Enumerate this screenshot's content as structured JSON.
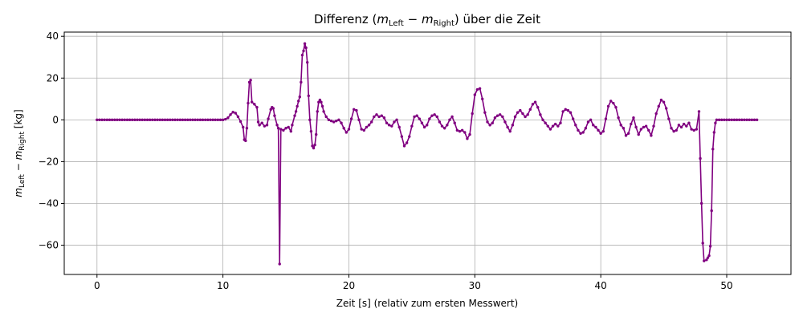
{
  "chart_data": {
    "type": "line",
    "title_parts": [
      "Differenz (",
      "m",
      "Left",
      " − ",
      "m",
      "Right",
      ") über die Zeit"
    ],
    "xlabel": "Zeit [s] (relativ zum ersten Messwert)",
    "ylabel_parts": [
      "m",
      "Left",
      " − ",
      "m",
      "Right",
      " [kg]"
    ],
    "xlim": [
      -2.6,
      55.1
    ],
    "ylim": [
      -74,
      42
    ],
    "x_ticks": [
      0,
      10,
      20,
      30,
      40,
      50
    ],
    "y_ticks": [
      -60,
      -40,
      -20,
      0,
      20,
      40
    ],
    "x_tick_labels": [
      "0",
      "10",
      "20",
      "30",
      "40",
      "50"
    ],
    "y_tick_labels": [
      "−60",
      "−40",
      "−20",
      "0",
      "20",
      "40"
    ],
    "grid": true,
    "series": [
      {
        "color": "#800080",
        "marker": "circle",
        "points": [
          [
            10.2,
            0.3
          ],
          [
            10.4,
            1.0
          ],
          [
            10.6,
            2.5
          ],
          [
            10.8,
            3.7
          ],
          [
            11.0,
            3.2
          ],
          [
            11.2,
            1.5
          ],
          [
            11.4,
            -0.8
          ],
          [
            11.6,
            -3.5
          ],
          [
            11.7,
            -9.5
          ],
          [
            11.8,
            -10.0
          ],
          [
            11.9,
            -4.0
          ],
          [
            12.0,
            8.0
          ],
          [
            12.1,
            18.0
          ],
          [
            12.2,
            19.0
          ],
          [
            12.3,
            8.5
          ],
          [
            12.5,
            7.5
          ],
          [
            12.7,
            6.0
          ],
          [
            12.8,
            -1.0
          ],
          [
            12.9,
            -2.5
          ],
          [
            13.1,
            -1.5
          ],
          [
            13.3,
            -3.0
          ],
          [
            13.5,
            -2.5
          ],
          [
            13.6,
            0.5
          ],
          [
            13.8,
            5.0
          ],
          [
            13.9,
            6.0
          ],
          [
            14.0,
            5.5
          ],
          [
            14.1,
            2.0
          ],
          [
            14.3,
            -2.5
          ],
          [
            14.4,
            -4.0
          ],
          [
            14.5,
            -69.0
          ],
          [
            14.6,
            -4.5
          ],
          [
            14.8,
            -5.0
          ],
          [
            15.0,
            -4.0
          ],
          [
            15.2,
            -3.5
          ],
          [
            15.4,
            -5.5
          ],
          [
            15.5,
            -2.5
          ],
          [
            15.7,
            2.0
          ],
          [
            15.8,
            4.0
          ],
          [
            15.9,
            6.5
          ],
          [
            16.0,
            9.0
          ],
          [
            16.1,
            11.0
          ],
          [
            16.2,
            18.0
          ],
          [
            16.3,
            31.0
          ],
          [
            16.4,
            33.0
          ],
          [
            16.5,
            36.5
          ],
          [
            16.6,
            34.5
          ],
          [
            16.7,
            27.5
          ],
          [
            16.8,
            11.5
          ],
          [
            16.9,
            0.0
          ],
          [
            17.0,
            -5.5
          ],
          [
            17.1,
            -12.5
          ],
          [
            17.2,
            -13.5
          ],
          [
            17.3,
            -12.0
          ],
          [
            17.4,
            -7.0
          ],
          [
            17.5,
            4.0
          ],
          [
            17.6,
            8.5
          ],
          [
            17.7,
            9.5
          ],
          [
            17.8,
            8.5
          ],
          [
            17.9,
            6.5
          ],
          [
            18.0,
            4.0
          ],
          [
            18.2,
            1.5
          ],
          [
            18.4,
            0.0
          ],
          [
            18.6,
            -0.5
          ],
          [
            18.8,
            -1.0
          ],
          [
            19.0,
            -0.5
          ],
          [
            19.2,
            0.0
          ],
          [
            19.4,
            -1.5
          ],
          [
            19.6,
            -4.0
          ],
          [
            19.8,
            -6.0
          ],
          [
            20.0,
            -4.5
          ],
          [
            20.2,
            0.5
          ],
          [
            20.4,
            5.0
          ],
          [
            20.6,
            4.5
          ],
          [
            20.8,
            0.0
          ],
          [
            21.0,
            -4.5
          ],
          [
            21.2,
            -5.0
          ],
          [
            21.4,
            -3.5
          ],
          [
            21.6,
            -2.5
          ],
          [
            21.8,
            -1.0
          ],
          [
            22.0,
            1.5
          ],
          [
            22.2,
            2.5
          ],
          [
            22.4,
            1.5
          ],
          [
            22.6,
            2.0
          ],
          [
            22.8,
            1.0
          ],
          [
            23.0,
            -1.5
          ],
          [
            23.2,
            -2.5
          ],
          [
            23.4,
            -3.0
          ],
          [
            23.6,
            -1.0
          ],
          [
            23.8,
            0.0
          ],
          [
            24.0,
            -3.5
          ],
          [
            24.2,
            -8.0
          ],
          [
            24.4,
            -12.5
          ],
          [
            24.6,
            -11.0
          ],
          [
            24.8,
            -8.0
          ],
          [
            25.0,
            -3.0
          ],
          [
            25.2,
            1.5
          ],
          [
            25.4,
            2.0
          ],
          [
            25.6,
            0.5
          ],
          [
            25.8,
            -1.5
          ],
          [
            26.0,
            -3.5
          ],
          [
            26.2,
            -2.5
          ],
          [
            26.4,
            0.5
          ],
          [
            26.6,
            2.0
          ],
          [
            26.8,
            2.5
          ],
          [
            27.0,
            1.5
          ],
          [
            27.2,
            -1.0
          ],
          [
            27.4,
            -3.0
          ],
          [
            27.6,
            -4.0
          ],
          [
            27.8,
            -2.5
          ],
          [
            28.0,
            0.0
          ],
          [
            28.2,
            1.5
          ],
          [
            28.4,
            -1.5
          ],
          [
            28.6,
            -5.0
          ],
          [
            28.8,
            -5.5
          ],
          [
            29.0,
            -5.0
          ],
          [
            29.2,
            -6.0
          ],
          [
            29.4,
            -9.0
          ],
          [
            29.6,
            -7.0
          ],
          [
            29.8,
            3.0
          ],
          [
            30.0,
            12.0
          ],
          [
            30.2,
            14.5
          ],
          [
            30.4,
            15.0
          ],
          [
            30.6,
            10.0
          ],
          [
            30.8,
            3.5
          ],
          [
            31.0,
            -1.0
          ],
          [
            31.2,
            -2.5
          ],
          [
            31.4,
            -1.5
          ],
          [
            31.6,
            1.0
          ],
          [
            31.8,
            2.0
          ],
          [
            32.0,
            2.5
          ],
          [
            32.2,
            1.5
          ],
          [
            32.4,
            -1.0
          ],
          [
            32.6,
            -3.5
          ],
          [
            32.8,
            -5.5
          ],
          [
            33.0,
            -2.5
          ],
          [
            33.2,
            1.5
          ],
          [
            33.4,
            3.5
          ],
          [
            33.6,
            4.5
          ],
          [
            33.8,
            3.0
          ],
          [
            34.0,
            1.5
          ],
          [
            34.2,
            2.5
          ],
          [
            34.4,
            5.0
          ],
          [
            34.6,
            7.5
          ],
          [
            34.8,
            8.5
          ],
          [
            35.0,
            6.0
          ],
          [
            35.2,
            2.5
          ],
          [
            35.4,
            0.0
          ],
          [
            35.6,
            -1.5
          ],
          [
            35.8,
            -3.0
          ],
          [
            36.0,
            -4.5
          ],
          [
            36.2,
            -3.0
          ],
          [
            36.4,
            -2.0
          ],
          [
            36.6,
            -3.0
          ],
          [
            36.8,
            -1.5
          ],
          [
            37.0,
            4.0
          ],
          [
            37.2,
            5.0
          ],
          [
            37.4,
            4.5
          ],
          [
            37.6,
            3.5
          ],
          [
            37.8,
            0.5
          ],
          [
            38.0,
            -2.5
          ],
          [
            38.2,
            -5.0
          ],
          [
            38.4,
            -6.5
          ],
          [
            38.6,
            -6.0
          ],
          [
            38.8,
            -4.0
          ],
          [
            39.0,
            -1.0
          ],
          [
            39.2,
            0.0
          ],
          [
            39.4,
            -2.5
          ],
          [
            39.6,
            -3.5
          ],
          [
            39.8,
            -5.0
          ],
          [
            40.0,
            -6.5
          ],
          [
            40.2,
            -5.5
          ],
          [
            40.4,
            0.5
          ],
          [
            40.6,
            6.5
          ],
          [
            40.8,
            9.0
          ],
          [
            41.0,
            8.0
          ],
          [
            41.2,
            6.0
          ],
          [
            41.4,
            1.0
          ],
          [
            41.6,
            -2.5
          ],
          [
            41.8,
            -4.0
          ],
          [
            42.0,
            -7.5
          ],
          [
            42.2,
            -6.5
          ],
          [
            42.4,
            -2.0
          ],
          [
            42.6,
            1.0
          ],
          [
            42.8,
            -3.5
          ],
          [
            43.0,
            -7.0
          ],
          [
            43.2,
            -4.5
          ],
          [
            43.4,
            -3.5
          ],
          [
            43.6,
            -3.0
          ],
          [
            43.8,
            -5.0
          ],
          [
            44.0,
            -7.5
          ],
          [
            44.2,
            -3.0
          ],
          [
            44.4,
            3.0
          ],
          [
            44.6,
            6.5
          ],
          [
            44.8,
            9.5
          ],
          [
            45.0,
            8.5
          ],
          [
            45.2,
            5.5
          ],
          [
            45.4,
            0.5
          ],
          [
            45.6,
            -4.0
          ],
          [
            45.8,
            -5.5
          ],
          [
            46.0,
            -5.0
          ],
          [
            46.2,
            -2.5
          ],
          [
            46.4,
            -3.5
          ],
          [
            46.6,
            -2.0
          ],
          [
            46.8,
            -3.0
          ],
          [
            47.0,
            -1.5
          ],
          [
            47.2,
            -4.5
          ],
          [
            47.4,
            -5.0
          ],
          [
            47.6,
            -4.5
          ],
          [
            47.8,
            4.0
          ],
          [
            47.9,
            -18.5
          ],
          [
            48.0,
            -40.0
          ],
          [
            48.1,
            -59.0
          ],
          [
            48.2,
            -67.5
          ],
          [
            48.4,
            -67.0
          ],
          [
            48.5,
            -66.0
          ],
          [
            48.6,
            -65.0
          ],
          [
            48.7,
            -60.5
          ],
          [
            48.8,
            -43.5
          ],
          [
            48.9,
            -14.0
          ],
          [
            49.0,
            -6.0
          ],
          [
            49.1,
            -1.5
          ],
          [
            49.2,
            0.0
          ]
        ]
      }
    ]
  }
}
